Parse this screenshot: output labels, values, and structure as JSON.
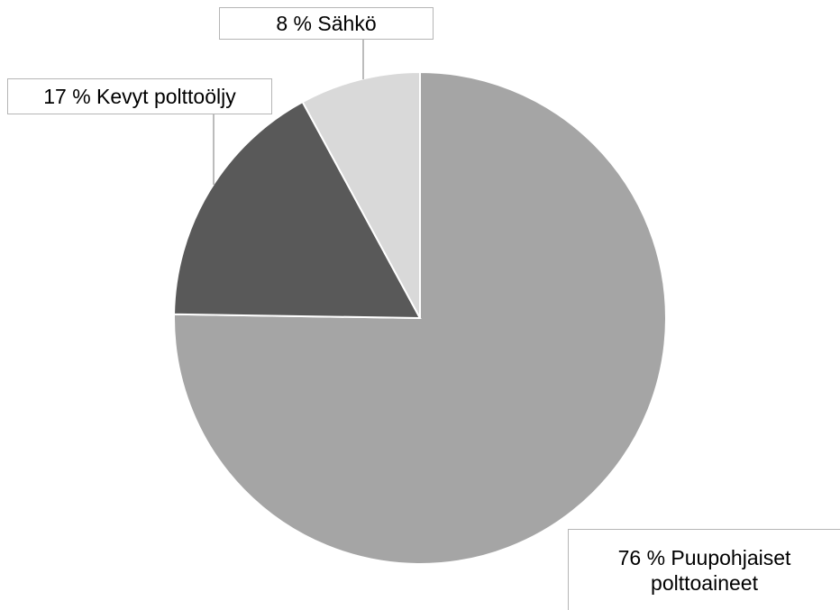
{
  "chart_data": {
    "type": "pie",
    "title": "",
    "start_angle_deg": 0,
    "direction": "clockwise",
    "slices": [
      {
        "key": "puu",
        "category": "Puupohjaiset polttoaineet",
        "value": 76,
        "label": "76 % Puupohjaiset polttoaineet",
        "color": "#a5a5a5"
      },
      {
        "key": "kevyt",
        "category": "Kevyt polttoöljy",
        "value": 17,
        "label": "17 % Kevyt polttoöljy",
        "color": "#595959"
      },
      {
        "key": "sahko",
        "category": "Sähkö",
        "value": 8,
        "label": "8 % Sähkö",
        "color": "#d9d9d9"
      }
    ],
    "legend": false
  }
}
